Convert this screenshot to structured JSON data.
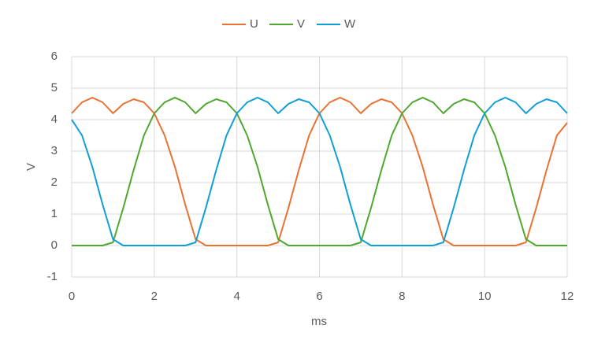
{
  "chart_data": {
    "type": "line",
    "x_label": "ms",
    "y_label": "V",
    "x": [
      0,
      0.25,
      0.5,
      0.75,
      1,
      1.25,
      1.5,
      1.75,
      2,
      2.25,
      2.5,
      2.75,
      3,
      3.25,
      3.5,
      3.75,
      4,
      4.25,
      4.5,
      4.75,
      5,
      5.25,
      5.5,
      5.75,
      6,
      6.25,
      6.5,
      6.75,
      7,
      7.25,
      7.5,
      7.75,
      8,
      8.25,
      8.5,
      8.75,
      9,
      9.25,
      9.5,
      9.75,
      10,
      10.25,
      10.5,
      10.75,
      11,
      11.25,
      11.5,
      11.75,
      12
    ],
    "series": [
      {
        "name": "U",
        "color": "#e97132",
        "values": [
          4.2,
          4.55,
          4.7,
          4.55,
          4.2,
          4.5,
          4.65,
          4.55,
          4.2,
          3.5,
          2.5,
          1.3,
          0.2,
          0,
          0,
          0,
          0,
          0,
          0,
          0,
          0.1,
          1.2,
          2.4,
          3.5,
          4.2,
          4.55,
          4.7,
          4.55,
          4.2,
          4.5,
          4.65,
          4.55,
          4.2,
          3.5,
          2.5,
          1.3,
          0.2,
          0,
          0,
          0,
          0,
          0,
          0,
          0,
          0.1,
          1.2,
          2.4,
          3.5,
          3.9
        ]
      },
      {
        "name": "V",
        "color": "#4ea72e",
        "values": [
          0,
          0,
          0,
          0,
          0.1,
          1.2,
          2.4,
          3.5,
          4.2,
          4.55,
          4.7,
          4.55,
          4.2,
          4.5,
          4.65,
          4.55,
          4.2,
          3.5,
          2.5,
          1.3,
          0.2,
          0,
          0,
          0,
          0,
          0,
          0,
          0,
          0.1,
          1.2,
          2.4,
          3.5,
          4.2,
          4.55,
          4.7,
          4.55,
          4.2,
          4.5,
          4.65,
          4.55,
          4.2,
          3.5,
          2.5,
          1.3,
          0.2,
          0,
          0,
          0,
          0
        ]
      },
      {
        "name": "W",
        "color": "#0f9ed5",
        "values": [
          4.0,
          3.5,
          2.5,
          1.3,
          0.2,
          0,
          0,
          0,
          0,
          0,
          0,
          0,
          0.1,
          1.2,
          2.4,
          3.5,
          4.2,
          4.55,
          4.7,
          4.55,
          4.2,
          4.5,
          4.65,
          4.55,
          4.2,
          3.5,
          2.5,
          1.3,
          0.2,
          0,
          0,
          0,
          0,
          0,
          0,
          0,
          0.1,
          1.2,
          2.4,
          3.5,
          4.2,
          4.55,
          4.7,
          4.55,
          4.2,
          4.5,
          4.65,
          4.55,
          4.2
        ]
      }
    ],
    "xlim": [
      0,
      12
    ],
    "xticks": [
      0,
      2,
      4,
      6,
      8,
      10,
      12
    ],
    "ylim": [
      -1,
      6
    ],
    "yticks": [
      -1,
      0,
      1,
      2,
      3,
      4,
      5,
      6
    ],
    "grid": true,
    "legend": "top"
  }
}
